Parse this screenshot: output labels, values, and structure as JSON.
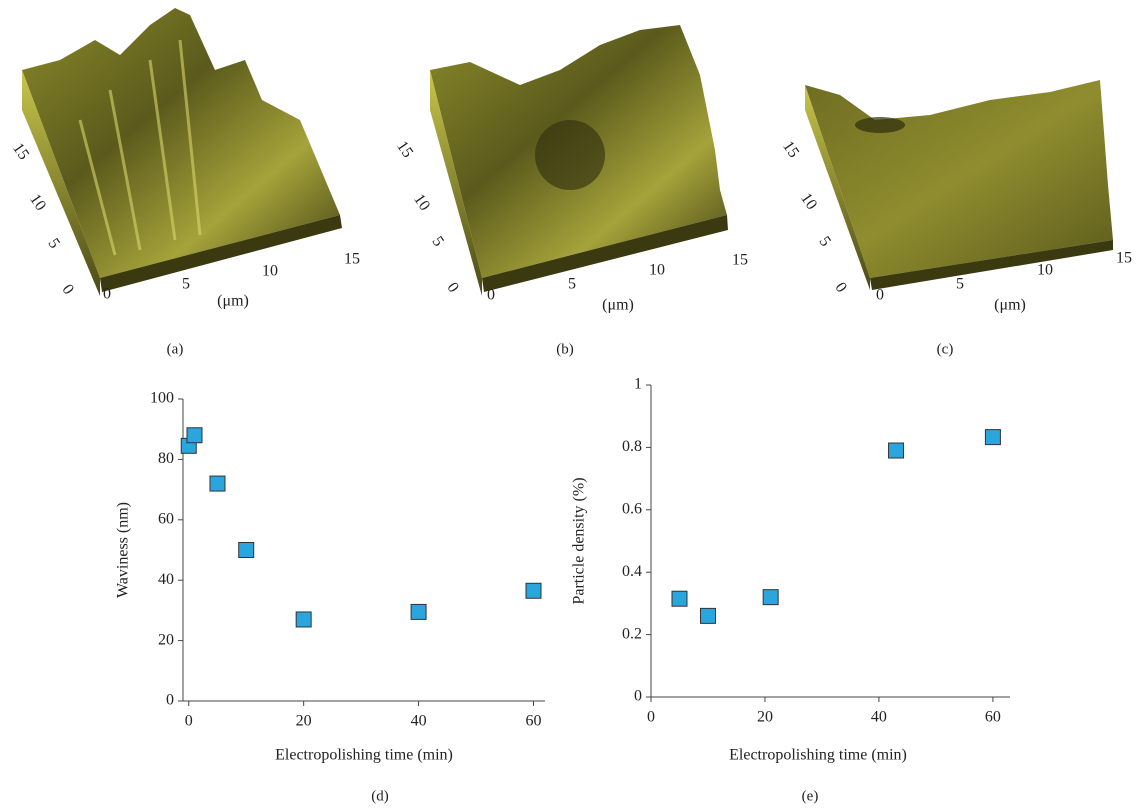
{
  "chart_data": [
    {
      "type": "scatter",
      "caption": "(d)",
      "xlabel": "Electropolishing time (min)",
      "ylabel": "Waviness (nm)",
      "x": [
        0,
        1,
        5,
        10,
        20,
        40,
        60
      ],
      "values": [
        84.5,
        88,
        72,
        50,
        27,
        29.5,
        36.5
      ],
      "color": "#2aa5dd",
      "xlim": [
        -1,
        62
      ],
      "ylim": [
        0,
        100
      ],
      "xticks": [
        0,
        20,
        40,
        60
      ],
      "yticks": [
        0,
        20,
        40,
        60,
        80,
        100
      ]
    },
    {
      "type": "scatter",
      "caption": "(e)",
      "xlabel": "Electropolishing time (min)",
      "ylabel": "Particle density (%)",
      "x": [
        5,
        10,
        21,
        43,
        60
      ],
      "values": [
        0.315,
        0.26,
        0.32,
        0.79,
        0.833
      ],
      "color": "#2aa5dd",
      "xlim": [
        0,
        63
      ],
      "ylim": [
        0,
        1
      ],
      "xticks": [
        0,
        20,
        40,
        60
      ],
      "yticks": [
        0,
        0.2,
        0.4,
        0.6,
        0.8,
        1
      ]
    }
  ],
  "afm_panels": [
    {
      "caption": "(a)",
      "x_ticks": [
        "0",
        "5",
        "10",
        "15"
      ],
      "y_ticks": [
        "0",
        "5",
        "10",
        "15"
      ],
      "unit": "(μm)"
    },
    {
      "caption": "(b)",
      "x_ticks": [
        "0",
        "5",
        "10",
        "15"
      ],
      "y_ticks": [
        "0",
        "5",
        "10",
        "15"
      ],
      "unit": "(μm)"
    },
    {
      "caption": "(c)",
      "x_ticks": [
        "0",
        "5",
        "10",
        "15"
      ],
      "y_ticks": [
        "0",
        "5",
        "10",
        "15"
      ],
      "unit": "(μm)"
    }
  ]
}
